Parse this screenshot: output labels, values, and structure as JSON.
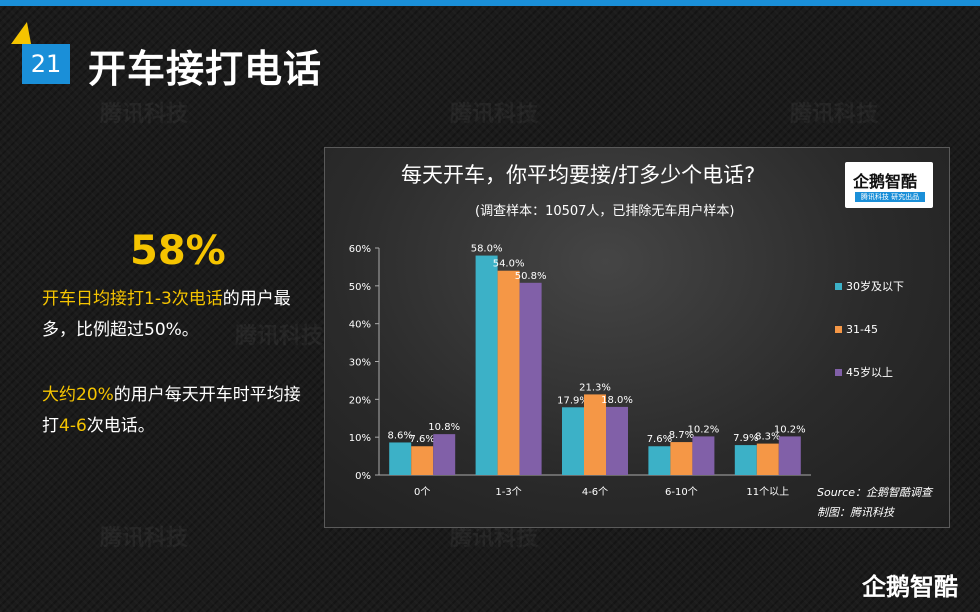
{
  "header": {
    "page_number": "21",
    "title": "开车接打电话"
  },
  "watermark_text": "腾讯科技",
  "left_panel": {
    "headline": "58%",
    "note1_part1": "开车日均接打1-3次电话",
    "note1_part2": "的用户最多，比例超过50%。",
    "note2_part1": "大约20%",
    "note2_part2": "的用户每天开车时平均接打",
    "note2_part3": "4-6",
    "note2_part4": "次电话。"
  },
  "logo": {
    "name": "企鹅智酷",
    "strip": "腾讯科技  研究出品"
  },
  "source": {
    "line1": "Source：企鹅智酷调查",
    "line2": "制图：腾讯科技"
  },
  "footer_logo": "企鹅智酷",
  "chart_data": {
    "type": "bar",
    "title": "每天开车，你平均要接/打多少个电话?",
    "subtitle": "(调查样本：10507人，已排除无车用户样本)",
    "categories": [
      "0个",
      "1-3个",
      "4-6个",
      "6-10个",
      "11个以上"
    ],
    "ylim": [
      0,
      60
    ],
    "yticks": [
      0,
      10,
      20,
      30,
      40,
      50,
      60
    ],
    "ytick_labels": [
      "0%",
      "10%",
      "20%",
      "30%",
      "40%",
      "50%",
      "60%"
    ],
    "legend_position": "right",
    "series": [
      {
        "name": "30岁及以下",
        "color": "#3cb1c7",
        "values": [
          8.6,
          58.0,
          17.9,
          7.6,
          7.9
        ],
        "labels": [
          "8.6%",
          "58.0%",
          "17.9%",
          "7.6%",
          "7.9%"
        ]
      },
      {
        "name": "31-45",
        "color": "#f59746",
        "values": [
          7.6,
          54.0,
          21.3,
          8.7,
          8.3
        ],
        "labels": [
          "7.6%",
          "54.0%",
          "21.3%",
          "8.7%",
          "8.3%"
        ]
      },
      {
        "name": "45岁以上",
        "color": "#8160a8",
        "values": [
          10.8,
          50.8,
          18.0,
          10.2,
          10.2
        ],
        "labels": [
          "10.8%",
          "50.8%",
          "18.0%",
          "10.2%",
          "10.2%"
        ]
      }
    ]
  }
}
